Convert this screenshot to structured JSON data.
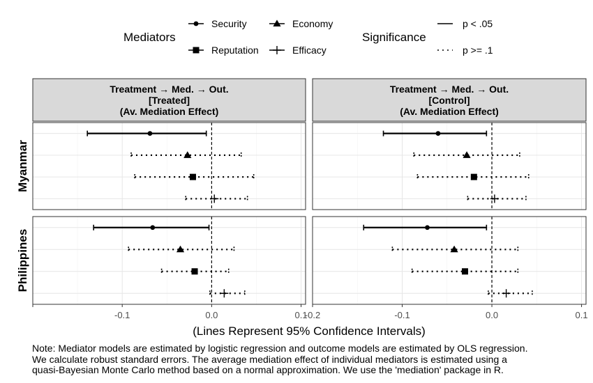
{
  "legend": {
    "mediators_title": "Mediators",
    "mediators": [
      {
        "name": "Security",
        "shape": "circle"
      },
      {
        "name": "Economy",
        "shape": "triangle"
      },
      {
        "name": "Reputation",
        "shape": "square"
      },
      {
        "name": "Efficacy",
        "shape": "plus"
      }
    ],
    "significance_title": "Significance",
    "significance": [
      {
        "name": "p < .05",
        "linetype": "solid"
      },
      {
        "name": "p >= .1",
        "linetype": "dotted"
      }
    ]
  },
  "panels": {
    "columns": [
      "Treatment → Med. → Out.\n[Treated]\n(Av. Mediation Effect)",
      "Treatment → Med. → Out.\n[Control]\n(Av. Mediation Effect)"
    ],
    "rows": [
      "Myanmar",
      "Philippines"
    ]
  },
  "xaxis": {
    "label": "(Lines Represent 95% Confidence Intervals)",
    "ticks": [
      -0.2,
      -0.1,
      0.0,
      0.1
    ],
    "tick_labels": [
      "-0.2",
      "-0.1",
      "0.0",
      "0.1"
    ]
  },
  "note": [
    "Note: Mediator models are estimated by logistic regression and outcome models are estimated by OLS regression.",
    "We calculate robust standard errors. The average mediation effect of individual mediators is estimated using a",
    "quasi-Bayesian Monte Carlo method based on a normal approximation. We use the 'mediation' package in R."
  ],
  "chart_data": {
    "type": "scatter",
    "xlim": [
      -0.2,
      0.105
    ],
    "grid": true,
    "reference_line": 0,
    "panels": [
      {
        "row": "Myanmar",
        "column": "Treated",
        "points": [
          {
            "mediator": "Security",
            "estimate": -0.069,
            "low": -0.139,
            "high": -0.006,
            "significance": "p < .05"
          },
          {
            "mediator": "Economy",
            "estimate": -0.027,
            "low": -0.09,
            "high": 0.033,
            "significance": "p >= .1"
          },
          {
            "mediator": "Reputation",
            "estimate": -0.021,
            "low": -0.086,
            "high": 0.047,
            "significance": "p >= .1"
          },
          {
            "mediator": "Efficacy",
            "estimate": 0.003,
            "low": -0.029,
            "high": 0.04,
            "significance": "p >= .1"
          }
        ]
      },
      {
        "row": "Myanmar",
        "column": "Control",
        "points": [
          {
            "mediator": "Security",
            "estimate": -0.06,
            "low": -0.121,
            "high": -0.006,
            "significance": "p < .05"
          },
          {
            "mediator": "Economy",
            "estimate": -0.028,
            "low": -0.087,
            "high": 0.031,
            "significance": "p >= .1"
          },
          {
            "mediator": "Reputation",
            "estimate": -0.02,
            "low": -0.083,
            "high": 0.041,
            "significance": "p >= .1"
          },
          {
            "mediator": "Efficacy",
            "estimate": 0.003,
            "low": -0.027,
            "high": 0.038,
            "significance": "p >= .1"
          }
        ]
      },
      {
        "row": "Philippines",
        "column": "Treated",
        "points": [
          {
            "mediator": "Security",
            "estimate": -0.066,
            "low": -0.132,
            "high": -0.003,
            "significance": "p < .05"
          },
          {
            "mediator": "Economy",
            "estimate": -0.035,
            "low": -0.093,
            "high": 0.025,
            "significance": "p >= .1"
          },
          {
            "mediator": "Reputation",
            "estimate": -0.019,
            "low": -0.056,
            "high": 0.019,
            "significance": "p >= .1"
          },
          {
            "mediator": "Efficacy",
            "estimate": 0.014,
            "low": -0.002,
            "high": 0.037,
            "significance": "p >= .1"
          }
        ]
      },
      {
        "row": "Philippines",
        "column": "Control",
        "points": [
          {
            "mediator": "Security",
            "estimate": -0.072,
            "low": -0.143,
            "high": -0.006,
            "significance": "p < .05"
          },
          {
            "mediator": "Economy",
            "estimate": -0.042,
            "low": -0.111,
            "high": 0.029,
            "significance": "p >= .1"
          },
          {
            "mediator": "Reputation",
            "estimate": -0.03,
            "low": -0.089,
            "high": 0.029,
            "significance": "p >= .1"
          },
          {
            "mediator": "Efficacy",
            "estimate": 0.016,
            "low": -0.004,
            "high": 0.045,
            "significance": "p >= .1"
          }
        ]
      }
    ]
  }
}
